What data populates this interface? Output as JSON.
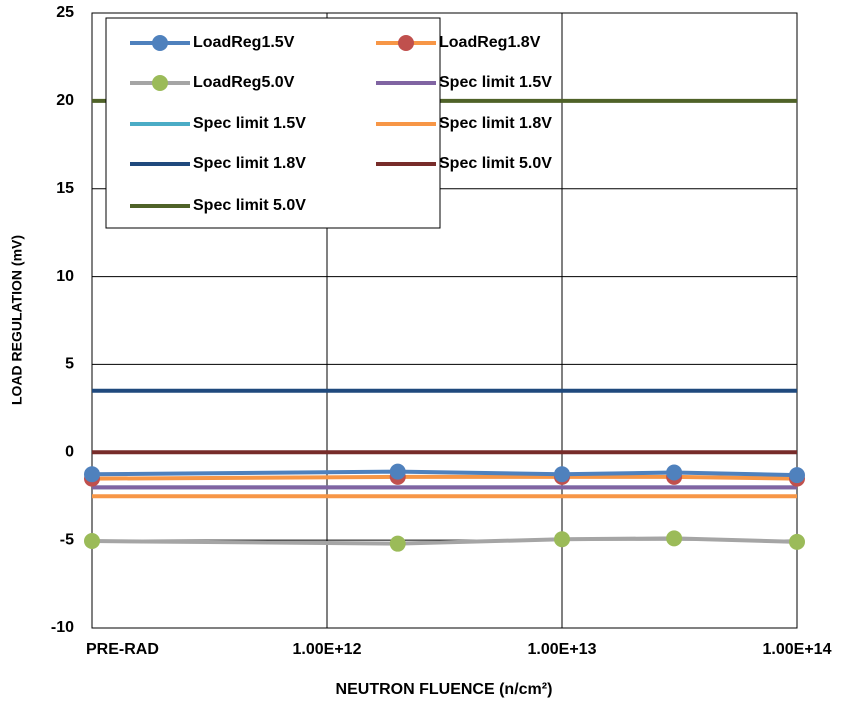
{
  "chart_data": {
    "type": "line",
    "x_label": "NEUTRON FLUENCE (n/cm²)",
    "y_label": "LOAD REGULATION (mV)",
    "x": [
      100000000000.0,
      2000000000000.0,
      10000000000000.0,
      30000000000000.0,
      100000000000000.0
    ],
    "x_log": true,
    "xlim": [
      100000000000.0,
      100000000000000.0
    ],
    "xticks": [
      {
        "value": 100000000000.0,
        "label": "PRE-RAD"
      },
      {
        "value": 1000000000000.0,
        "label": "1.00E+12"
      },
      {
        "value": 10000000000000.0,
        "label": "1.00E+13"
      },
      {
        "value": 100000000000000.0,
        "label": "1.00E+14"
      }
    ],
    "ylim": [
      -10,
      25
    ],
    "yticks": [
      -10,
      -5,
      0,
      5,
      10,
      15,
      20,
      25
    ],
    "grid": true,
    "legend": "upper-left",
    "series": [
      {
        "name": "LoadReg1.5V",
        "color": "#4f81bd",
        "marker_color": "#4f81bd",
        "values": [
          -1.25,
          -1.1,
          -1.25,
          -1.15,
          -1.3
        ]
      },
      {
        "name": "LoadReg1.8V",
        "color": "#f79646",
        "marker_color": "#c0504d",
        "values": [
          -1.5,
          -1.4,
          -1.4,
          -1.4,
          -1.5
        ]
      },
      {
        "name": "LoadReg5.0V",
        "color": "#a5a5a5",
        "marker_color": "#9bbb59",
        "values": [
          -5.05,
          -5.2,
          -4.95,
          -4.9,
          -5.1
        ]
      },
      {
        "name": "Spec limit 1.5V",
        "color": "#8064a2",
        "values": [
          -2,
          -2,
          -2,
          -2,
          -2
        ]
      },
      {
        "name": "Spec limit 1.5V",
        "color": "#4bacc6",
        "values": [
          -2,
          -2,
          -2,
          -2,
          -2
        ]
      },
      {
        "name": "Spec limit 1.8V",
        "color": "#f79646",
        "values": [
          -2.5,
          -2.5,
          -2.5,
          -2.5,
          -2.5
        ]
      },
      {
        "name": "Spec limit 1.8V",
        "color": "#1f497d",
        "values": [
          3.5,
          3.5,
          3.5,
          3.5,
          3.5
        ]
      },
      {
        "name": "Spec limit 5.0V",
        "color": "#772c2a",
        "values": [
          0,
          0,
          0,
          0,
          0
        ]
      },
      {
        "name": "Spec limit 5.0V",
        "color": "#4f6228",
        "values": [
          20,
          20,
          20,
          20,
          20
        ]
      }
    ]
  }
}
